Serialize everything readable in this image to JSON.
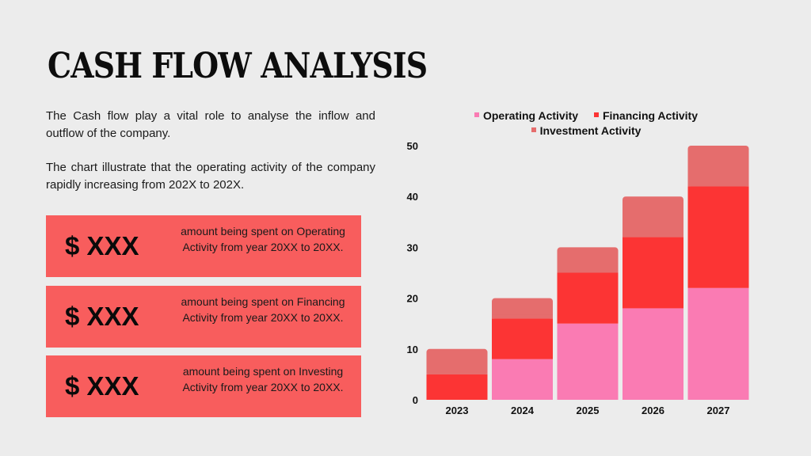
{
  "title": "CASH FLOW ANALYSIS",
  "paragraphs": [
    "The Cash flow play a vital role to analyse the inflow and outflow of the company.",
    "The chart illustrate that the operating activity of the company rapidly increasing from 202X to 202X."
  ],
  "cards": [
    {
      "amount": "$ XXX",
      "desc": "amount being spent on Operating Activity from year 20XX to 20XX."
    },
    {
      "amount": "$ XXX",
      "desc": "amount being spent on Financing Activity from year 20XX to 20XX."
    },
    {
      "amount": "$ XXX",
      "desc": "amount being spent on Investing Activity from year 20XX to 20XX."
    }
  ],
  "colors": {
    "card_bg": "#f85d5d"
  },
  "chart_data": {
    "type": "bar",
    "stacked": true,
    "categories": [
      "2023",
      "2024",
      "2025",
      "2026",
      "2027"
    ],
    "series": [
      {
        "name": "Operating Activity",
        "color": "#fa7bb3",
        "values": [
          0,
          8,
          15,
          18,
          22
        ]
      },
      {
        "name": "Financing Activity",
        "color": "#fc3434",
        "values": [
          5,
          8,
          10,
          14,
          20
        ]
      },
      {
        "name": "Investment Activity",
        "color": "#e56d6d",
        "values": [
          5,
          4,
          5,
          8,
          8
        ]
      }
    ],
    "yticks": [
      0,
      10,
      20,
      30,
      40,
      50
    ],
    "ylim": [
      0,
      50
    ],
    "legend": "top"
  }
}
